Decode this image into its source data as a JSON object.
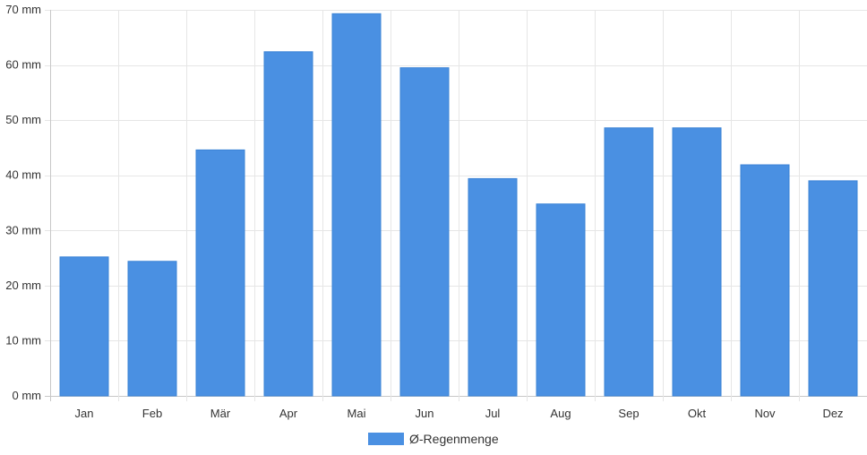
{
  "chart_data": {
    "type": "bar",
    "categories": [
      "Jan",
      "Feb",
      "Mär",
      "Apr",
      "Mai",
      "Jun",
      "Jul",
      "Aug",
      "Sep",
      "Okt",
      "Nov",
      "Dez"
    ],
    "series": [
      {
        "name": "Ø-Regenmenge",
        "values": [
          25.2,
          24.4,
          44.6,
          62.4,
          69.3,
          59.5,
          39.4,
          34.8,
          48.6,
          48.6,
          41.9,
          39.0
        ]
      }
    ],
    "y_ticks": [
      "0 mm",
      "10 mm",
      "20 mm",
      "30 mm",
      "40 mm",
      "50 mm",
      "60 mm",
      "70 mm"
    ],
    "ylim": [
      0,
      70
    ],
    "grid": true,
    "legend": "bottom",
    "colors": {
      "bar": "#4a90e2",
      "bar_border": "#3b83d6",
      "grid": "#e6e6e6",
      "axis": "#c8c8c8"
    }
  }
}
